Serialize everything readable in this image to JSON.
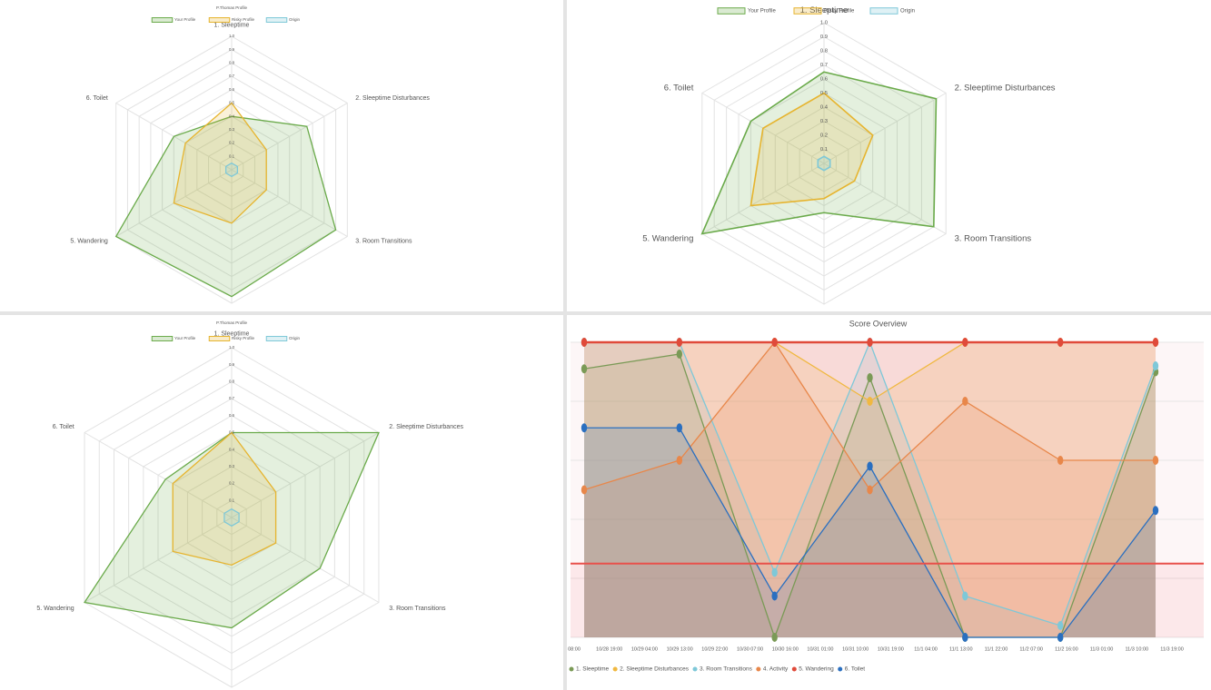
{
  "chart_data": [
    {
      "type": "radar",
      "title": "P.Thomas Profile",
      "categories": [
        "1. Sleeptime",
        "2. Sleeptime Disturbances",
        "3. Room Transitions",
        "4. Activity",
        "5. Wandering",
        "6. Toilet"
      ],
      "ylim": [
        0,
        1
      ],
      "yticks": [
        0,
        0.1,
        0.2,
        0.3,
        0.4,
        0.5,
        0.6,
        0.7,
        0.8,
        0.9,
        {
          "value": 1,
          "label": "1.0"
        }
      ],
      "series": [
        {
          "name": "Your Profile",
          "color": "#6aaa4a",
          "values": [
            0.4,
            0.65,
            0.9,
            0.95,
            1.0,
            0.5
          ]
        },
        {
          "name": "Risky Profile",
          "color": "#e6b42e",
          "values": [
            0.5,
            0.3,
            0.3,
            0.4,
            0.5,
            0.4
          ]
        },
        {
          "name": "Origin",
          "color": "#7ec8d8",
          "values": [
            0.05,
            0.05,
            0.05,
            0.05,
            0.05,
            0.05
          ]
        }
      ]
    },
    {
      "type": "radar",
      "categories": [
        "1. Sleeptime",
        "2. Sleeptime Disturbances",
        "3. Room Transitions",
        "4. Activity",
        "5. Wandering",
        "6. Toilet"
      ],
      "ylim": [
        0,
        1
      ],
      "yticks": [
        0,
        0.1,
        0.2,
        0.3,
        0.4,
        0.5,
        0.6,
        0.7,
        0.8,
        0.9,
        {
          "value": 1,
          "label": "1.0"
        }
      ],
      "series": [
        {
          "name": "Your Profile",
          "color": "#6aaa4a",
          "values": [
            0.65,
            0.92,
            0.9,
            0.35,
            1.0,
            0.6
          ]
        },
        {
          "name": "Risky Profile",
          "color": "#e6b42e",
          "values": [
            0.5,
            0.4,
            0.25,
            0.25,
            0.6,
            0.5
          ]
        },
        {
          "name": "Origin",
          "color": "#7ec8d8",
          "values": [
            0.05,
            0.05,
            0.05,
            0.05,
            0.05,
            0.05
          ]
        }
      ]
    },
    {
      "type": "radar",
      "title": "P.Thomas Profile",
      "categories": [
        "1. Sleeptime",
        "2. Sleeptime Disturbances",
        "3. Room Transitions",
        "4. Activity",
        "5. Wandering",
        "6. Toilet"
      ],
      "ylim": [
        0,
        1
      ],
      "yticks": [
        0,
        0.1,
        0.2,
        0.3,
        0.4,
        0.5,
        0.6,
        0.7,
        0.8,
        0.9,
        {
          "value": 1,
          "label": "1.0"
        }
      ],
      "series": [
        {
          "name": "Your Profile",
          "color": "#6aaa4a",
          "values": [
            0.5,
            1.0,
            0.6,
            0.65,
            1.0,
            0.45
          ]
        },
        {
          "name": "Risky Profile",
          "color": "#e6b42e",
          "values": [
            0.5,
            0.3,
            0.3,
            0.28,
            0.4,
            0.4
          ]
        },
        {
          "name": "Origin",
          "color": "#7ec8d8",
          "values": [
            0.05,
            0.05,
            0.05,
            0.05,
            0.05,
            0.05
          ]
        }
      ]
    },
    {
      "type": "line",
      "title": "Score Overview",
      "xticks": [
        "08:00",
        "10/28 19:00",
        "10/29 04:00",
        "10/29 13:00",
        "10/29 22:00",
        "10/30 07:00",
        "10/30 16:00",
        "10/31 01:00",
        "10/31 10:00",
        "10/31 19:00",
        "11/1 04:00",
        "11/1 13:00",
        "11/1 22:00",
        "11/2 07:00",
        "11/2 16:00",
        "11/3 01:00",
        "11/3 10:00",
        "11/3 19:00"
      ],
      "ylim": [
        0,
        1
      ],
      "yticks": [
        0,
        0.2,
        0.4,
        0.6,
        0.8,
        1
      ],
      "threshold": 0.25,
      "series": [
        {
          "name": "1. Sleeptime",
          "color": "#7a9a56",
          "values": [
            0.91,
            0.96,
            0,
            0.88,
            0,
            0,
            0.9
          ]
        },
        {
          "name": "2. Sleeptime Disturbances",
          "color": "#f0b840",
          "values": [
            1,
            1,
            1,
            0.8,
            1,
            1,
            1
          ]
        },
        {
          "name": "3. Room Transitions",
          "color": "#7ec8d8",
          "values": [
            1,
            1,
            0.22,
            1,
            0.14,
            0.04,
            0.92
          ]
        },
        {
          "name": "4. Activity",
          "color": "#e8874a",
          "values": [
            0.5,
            0.6,
            1,
            0.5,
            0.8,
            0.6,
            0.6
          ]
        },
        {
          "name": "5. Wandering",
          "color": "#e04a3a",
          "values": [
            1,
            1,
            1,
            1,
            1,
            1,
            1
          ]
        },
        {
          "name": "6. Toilet",
          "color": "#2a6fc0",
          "values": [
            0.71,
            0.71,
            0.14,
            0.58,
            0,
            0,
            0.43
          ]
        }
      ]
    }
  ]
}
